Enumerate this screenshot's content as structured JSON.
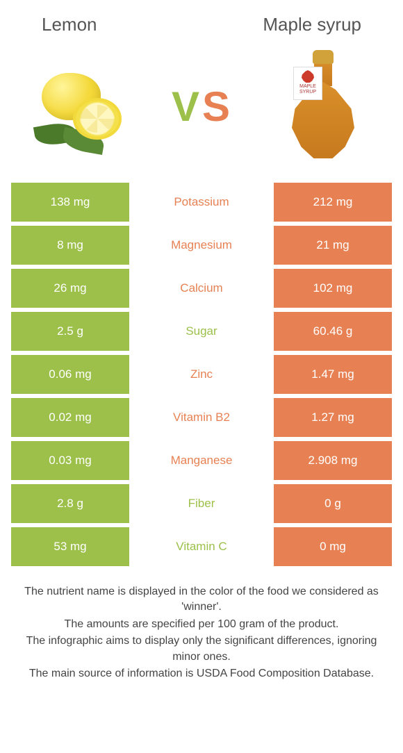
{
  "colors": {
    "left": "#9cc04a",
    "right": "#e78153",
    "vs_v": "#9cc04a",
    "vs_s": "#e78153"
  },
  "header": {
    "left_title": "Lemon",
    "right_title": "Maple syrup"
  },
  "vs": {
    "v": "V",
    "s": "S"
  },
  "syrup_tag": "MAPLE SYRUP",
  "nutrients": [
    {
      "name": "Potassium",
      "left": "138 mg",
      "right": "212 mg",
      "winner": "right"
    },
    {
      "name": "Magnesium",
      "left": "8 mg",
      "right": "21 mg",
      "winner": "right"
    },
    {
      "name": "Calcium",
      "left": "26 mg",
      "right": "102 mg",
      "winner": "right"
    },
    {
      "name": "Sugar",
      "left": "2.5 g",
      "right": "60.46 g",
      "winner": "left"
    },
    {
      "name": "Zinc",
      "left": "0.06 mg",
      "right": "1.47 mg",
      "winner": "right"
    },
    {
      "name": "Vitamin B2",
      "left": "0.02 mg",
      "right": "1.27 mg",
      "winner": "right"
    },
    {
      "name": "Manganese",
      "left": "0.03 mg",
      "right": "2.908 mg",
      "winner": "right"
    },
    {
      "name": "Fiber",
      "left": "2.8 g",
      "right": "0 g",
      "winner": "left"
    },
    {
      "name": "Vitamin C",
      "left": "53 mg",
      "right": "0 mg",
      "winner": "left"
    }
  ],
  "footer": {
    "l1": "The nutrient name is displayed in the color of the food we considered as 'winner'.",
    "l2": "The amounts are specified per 100 gram of the product.",
    "l3": "The infographic aims to display only the significant differences, ignoring minor ones.",
    "l4": "The main source of information is USDA Food Composition Database."
  }
}
